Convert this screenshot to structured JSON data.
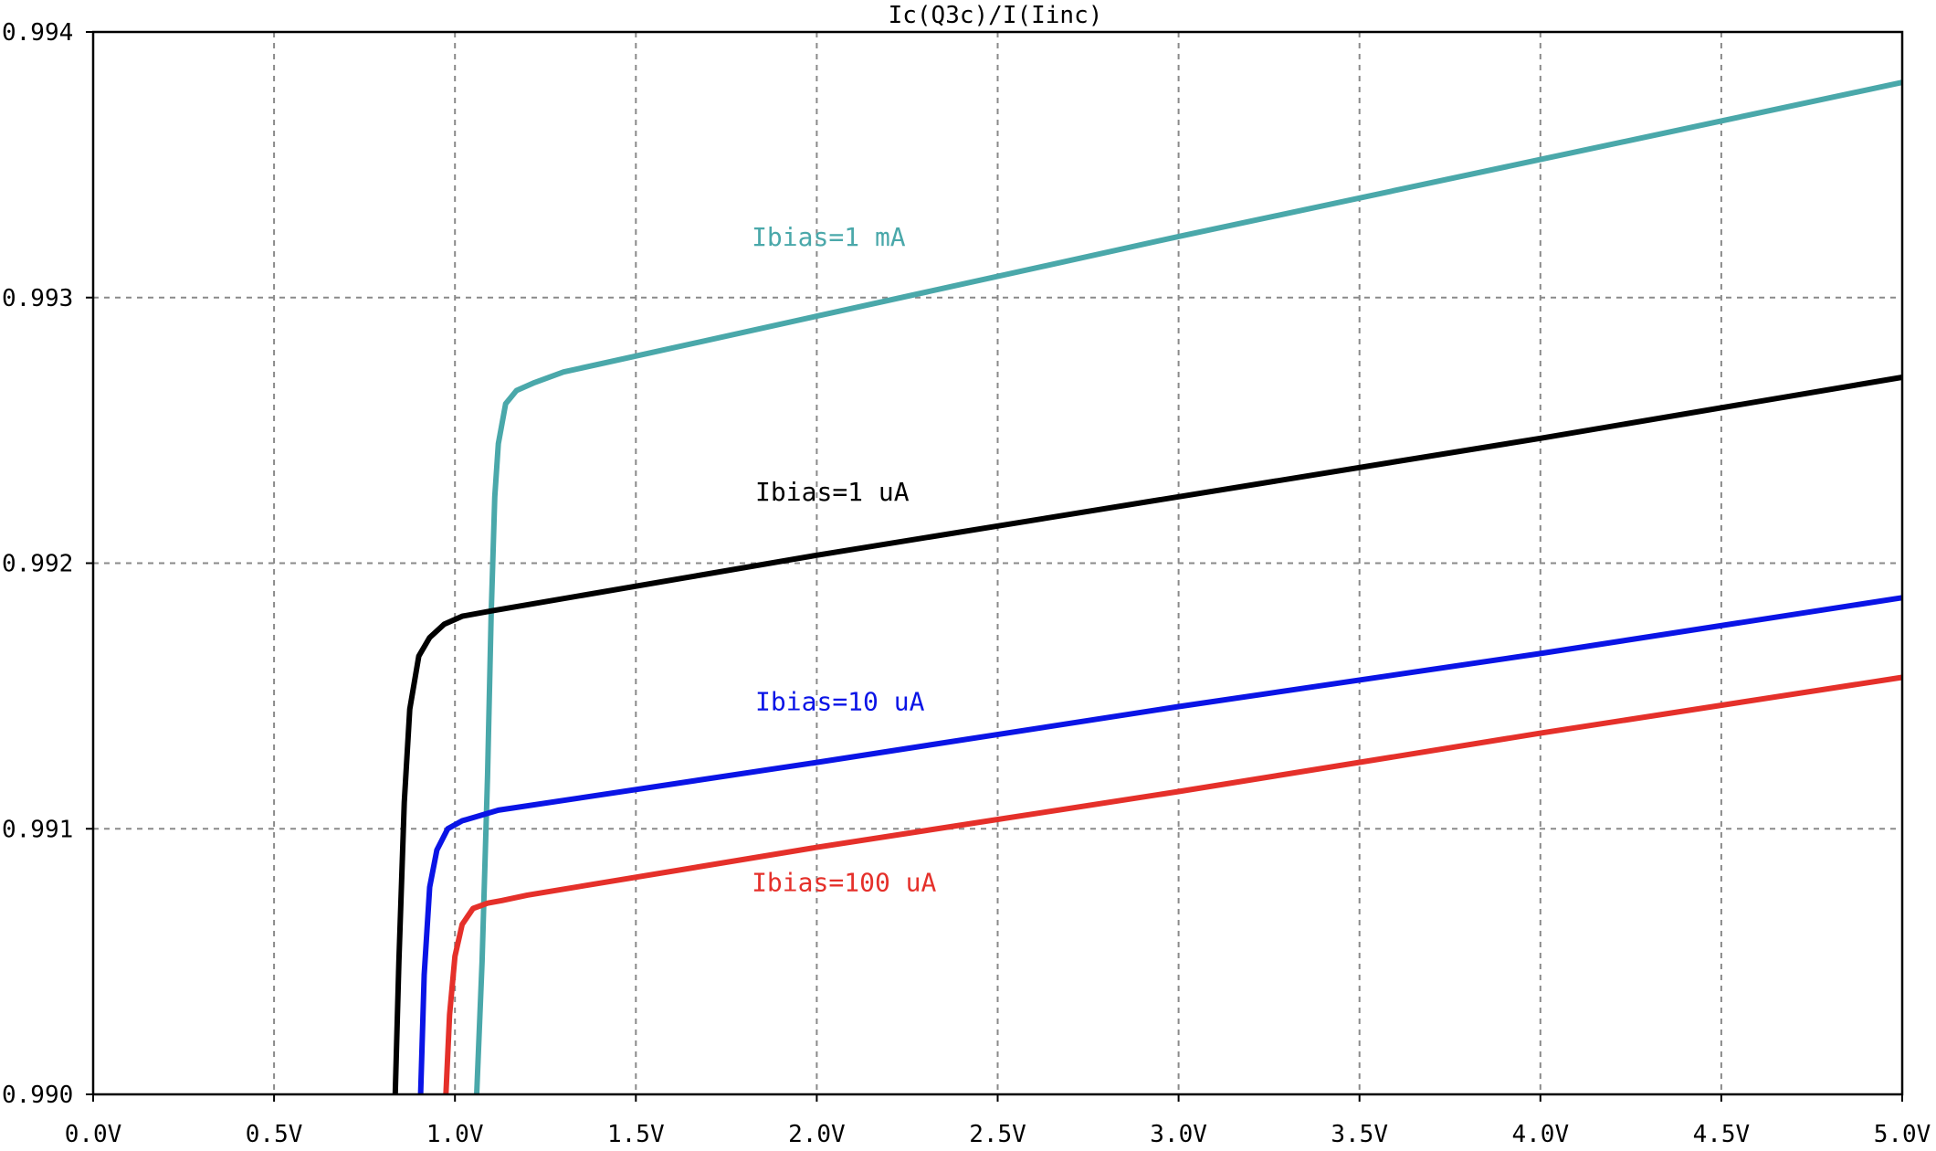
{
  "chart_data": {
    "type": "line",
    "title": "Ic(Q3c)/I(Iinc)",
    "xlabel": "",
    "ylabel": "",
    "xlim": [
      0.0,
      5.0
    ],
    "ylim": [
      0.99,
      0.994
    ],
    "x_ticks": [
      "0.0V",
      "0.5V",
      "1.0V",
      "1.5V",
      "2.0V",
      "2.5V",
      "3.0V",
      "3.5V",
      "4.0V",
      "4.5V",
      "5.0V"
    ],
    "x_tick_values": [
      0.0,
      0.5,
      1.0,
      1.5,
      2.0,
      2.5,
      3.0,
      3.5,
      4.0,
      4.5,
      5.0
    ],
    "y_ticks": [
      "0.990",
      "0.991",
      "0.992",
      "0.993",
      "0.994"
    ],
    "y_tick_values": [
      0.99,
      0.991,
      0.992,
      0.993,
      0.994
    ],
    "grid": true,
    "series": [
      {
        "name": "Ibias=1 mA",
        "color": "#4aa8aa",
        "x": [
          1.06,
          1.075,
          1.09,
          1.1,
          1.11,
          1.12,
          1.14,
          1.17,
          1.22,
          1.3,
          2.0,
          3.0,
          4.0,
          5.0
        ],
        "y": [
          0.99,
          0.9905,
          0.9912,
          0.9918,
          0.99225,
          0.99245,
          0.9926,
          0.99265,
          0.99268,
          0.99272,
          0.99293,
          0.99323,
          0.99352,
          0.99381
        ]
      },
      {
        "name": "Ibias=1 uA",
        "color": "#000000",
        "x": [
          0.835,
          0.845,
          0.86,
          0.875,
          0.9,
          0.93,
          0.97,
          1.02,
          1.1,
          2.0,
          3.0,
          4.0,
          5.0
        ],
        "y": [
          0.99,
          0.9905,
          0.9911,
          0.99145,
          0.99165,
          0.99172,
          0.99177,
          0.9918,
          0.99182,
          0.99203,
          0.99225,
          0.99247,
          0.9927
        ]
      },
      {
        "name": "Ibias=10 uA",
        "color": "#0a14e6",
        "x": [
          0.905,
          0.915,
          0.93,
          0.95,
          0.98,
          1.02,
          1.07,
          1.12,
          2.0,
          3.0,
          4.0,
          5.0
        ],
        "y": [
          0.99,
          0.99045,
          0.99078,
          0.99092,
          0.991,
          0.99103,
          0.99105,
          0.99107,
          0.99125,
          0.99146,
          0.99166,
          0.99187
        ]
      },
      {
        "name": "Ibias=100 uA",
        "color": "#e5302a",
        "x": [
          0.975,
          0.985,
          1.0,
          1.02,
          1.05,
          1.09,
          1.13,
          1.2,
          2.0,
          3.0,
          4.0,
          5.0
        ],
        "y": [
          0.99,
          0.9903,
          0.99052,
          0.99064,
          0.9907,
          0.99072,
          0.99073,
          0.99075,
          0.99093,
          0.99114,
          0.99136,
          0.99157
        ]
      }
    ]
  }
}
